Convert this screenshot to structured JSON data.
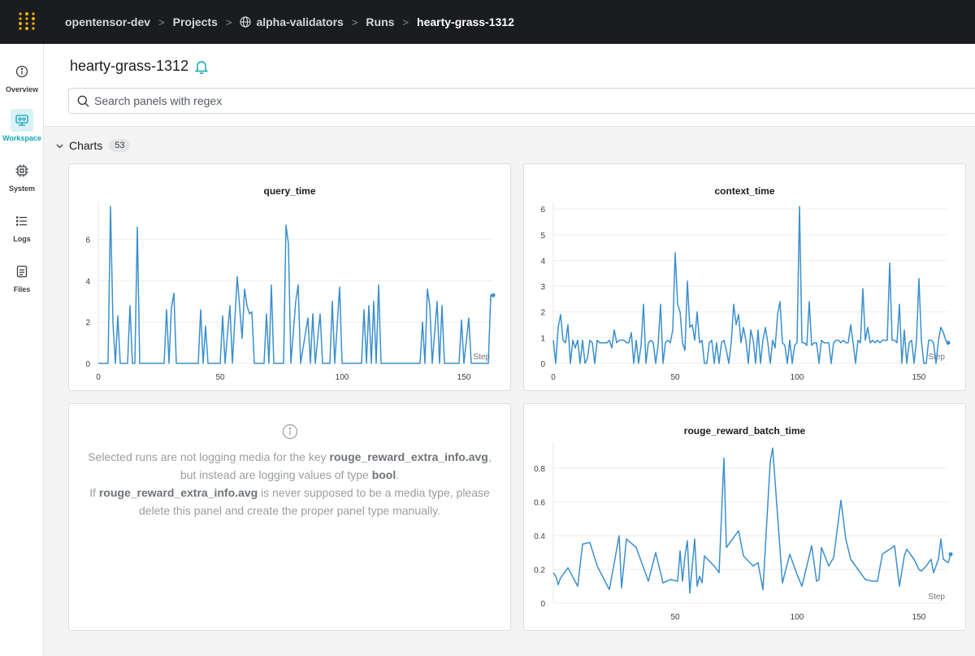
{
  "breadcrumb": {
    "items": [
      "opentensor-dev",
      "Projects",
      "alpha-validators",
      "Runs",
      "hearty-grass-1312"
    ],
    "separator": ">"
  },
  "sidebar": {
    "items": [
      {
        "label": "Overview",
        "icon": "info-icon"
      },
      {
        "label": "Workspace",
        "icon": "workspace-icon"
      },
      {
        "label": "System",
        "icon": "chip-icon"
      },
      {
        "label": "Logs",
        "icon": "logs-icon"
      },
      {
        "label": "Files",
        "icon": "file-icon"
      }
    ],
    "active": "Workspace"
  },
  "header": {
    "run_title": "hearty-grass-1312",
    "search_placeholder": "Search panels with regex"
  },
  "section": {
    "label": "Charts",
    "count": "53"
  },
  "colors": {
    "accent": "#10a5b8",
    "line": "#3b8fce",
    "topbar": "#1a1c1f"
  },
  "media_panel": {
    "l1_a": "Selected runs are not logging media for the key ",
    "l1_key": "rouge_reward_extra_info.avg",
    "l1_b": ",",
    "l2_a": "but instead are logging values of type ",
    "l2_type": "bool",
    "l2_b": ".",
    "l3_a": "If ",
    "l3_key": "rouge_reward_extra_info.avg",
    "l3_b": " is never supposed to be a media type, please",
    "l4": "delete this panel and create the proper panel type manually."
  },
  "chart_data": [
    {
      "type": "line",
      "title": "query_time",
      "x_axis_label": "Step",
      "xlim": [
        0,
        162
      ],
      "ylim": [
        0,
        7.6
      ],
      "x_ticks": [
        0,
        50,
        100,
        150
      ],
      "y_ticks": [
        0,
        2,
        4,
        6
      ],
      "points": [
        [
          0,
          0
        ],
        [
          4,
          0
        ],
        [
          5,
          7.6
        ],
        [
          6,
          2
        ],
        [
          7,
          0
        ],
        [
          8,
          2.3
        ],
        [
          9,
          0
        ],
        [
          12,
          0
        ],
        [
          13,
          2.8
        ],
        [
          14,
          0
        ],
        [
          15,
          0
        ],
        [
          16,
          6.6
        ],
        [
          17,
          0
        ],
        [
          27,
          0
        ],
        [
          28,
          2.6
        ],
        [
          29,
          0
        ],
        [
          30,
          2.7
        ],
        [
          31,
          3.4
        ],
        [
          32,
          0
        ],
        [
          41,
          0
        ],
        [
          42,
          2.6
        ],
        [
          43,
          0
        ],
        [
          44,
          1.8
        ],
        [
          45,
          0
        ],
        [
          50,
          0
        ],
        [
          51,
          2.3
        ],
        [
          52,
          0
        ],
        [
          54,
          2.8
        ],
        [
          55,
          0
        ],
        [
          57,
          4.2
        ],
        [
          58,
          2.7
        ],
        [
          59,
          1.2
        ],
        [
          60,
          3.6
        ],
        [
          61,
          2.8
        ],
        [
          62,
          2.4
        ],
        [
          63,
          2.5
        ],
        [
          64,
          0
        ],
        [
          68,
          0
        ],
        [
          69,
          2.4
        ],
        [
          70,
          0
        ],
        [
          71,
          3.8
        ],
        [
          72,
          0
        ],
        [
          76,
          0
        ],
        [
          77,
          6.7
        ],
        [
          78,
          5.8
        ],
        [
          79,
          0
        ],
        [
          81,
          3.0
        ],
        [
          82,
          3.8
        ],
        [
          83,
          0
        ],
        [
          86,
          2.2
        ],
        [
          87,
          0
        ],
        [
          88,
          2.4
        ],
        [
          89,
          0
        ],
        [
          91,
          2.4
        ],
        [
          92,
          0
        ],
        [
          95,
          0
        ],
        [
          96,
          3.0
        ],
        [
          97,
          0
        ],
        [
          99,
          3.7
        ],
        [
          100,
          0
        ],
        [
          108,
          0
        ],
        [
          109,
          2.6
        ],
        [
          110,
          0
        ],
        [
          111,
          2.8
        ],
        [
          112,
          0
        ],
        [
          113,
          3.0
        ],
        [
          114,
          0
        ],
        [
          115,
          3.8
        ],
        [
          116,
          0
        ],
        [
          132,
          0
        ],
        [
          133,
          2.0
        ],
        [
          134,
          0
        ],
        [
          135,
          3.6
        ],
        [
          136,
          2.8
        ],
        [
          137,
          0
        ],
        [
          139,
          3.0
        ],
        [
          140,
          0
        ],
        [
          141,
          2.8
        ],
        [
          142,
          0
        ],
        [
          148,
          0
        ],
        [
          149,
          2.1
        ],
        [
          150,
          0
        ],
        [
          152,
          2.2
        ],
        [
          153,
          0
        ],
        [
          160,
          0
        ],
        [
          161,
          3.3
        ],
        [
          162,
          3.3
        ]
      ]
    },
    {
      "type": "line",
      "title": "context_time",
      "x_axis_label": "Step",
      "xlim": [
        0,
        162
      ],
      "ylim": [
        0,
        6.1
      ],
      "x_ticks": [
        0,
        50,
        100,
        150
      ],
      "y_ticks": [
        0,
        1,
        2,
        3,
        4,
        5,
        6
      ],
      "points": [
        [
          0,
          0.9
        ],
        [
          1,
          0
        ],
        [
          2,
          1.4
        ],
        [
          3,
          1.9
        ],
        [
          4,
          0.9
        ],
        [
          5,
          0.8
        ],
        [
          6,
          1.5
        ],
        [
          7,
          0
        ],
        [
          8,
          0.9
        ],
        [
          9,
          0.6
        ],
        [
          10,
          0.9
        ],
        [
          11,
          0
        ],
        [
          12,
          0.9
        ],
        [
          13,
          0
        ],
        [
          14,
          0.2
        ],
        [
          15,
          0.9
        ],
        [
          16,
          0.8
        ],
        [
          17,
          0
        ],
        [
          18,
          0.9
        ],
        [
          19,
          0.8
        ],
        [
          20,
          0.8
        ],
        [
          21,
          0.8
        ],
        [
          22,
          0.8
        ],
        [
          23,
          0.9
        ],
        [
          24,
          0.6
        ],
        [
          25,
          1.3
        ],
        [
          26,
          0.8
        ],
        [
          27,
          0.9
        ],
        [
          28,
          0.9
        ],
        [
          29,
          0.9
        ],
        [
          30,
          0.8
        ],
        [
          31,
          0.8
        ],
        [
          32,
          1.2
        ],
        [
          33,
          0
        ],
        [
          34,
          0.9
        ],
        [
          35,
          0
        ],
        [
          36,
          0.7
        ],
        [
          37,
          2.3
        ],
        [
          38,
          0
        ],
        [
          39,
          0.8
        ],
        [
          40,
          0.9
        ],
        [
          41,
          0.8
        ],
        [
          42,
          0
        ],
        [
          43,
          0.7
        ],
        [
          44,
          2.3
        ],
        [
          45,
          0
        ],
        [
          46,
          0.8
        ],
        [
          47,
          0.9
        ],
        [
          48,
          0.8
        ],
        [
          49,
          1.3
        ],
        [
          50,
          4.3
        ],
        [
          51,
          2.3
        ],
        [
          52,
          2.0
        ],
        [
          53,
          0.8
        ],
        [
          54,
          0.5
        ],
        [
          55,
          3.2
        ],
        [
          56,
          1.4
        ],
        [
          57,
          1.5
        ],
        [
          58,
          0.9
        ],
        [
          59,
          2.0
        ],
        [
          60,
          0.8
        ],
        [
          61,
          0.9
        ],
        [
          62,
          0
        ],
        [
          63,
          0
        ],
        [
          64,
          0.8
        ],
        [
          65,
          0.9
        ],
        [
          66,
          0
        ],
        [
          67,
          0.8
        ],
        [
          68,
          0
        ],
        [
          69,
          0.8
        ],
        [
          70,
          0.9
        ],
        [
          71,
          0.5
        ],
        [
          72,
          0
        ],
        [
          73,
          0.8
        ],
        [
          74,
          2.3
        ],
        [
          75,
          1.5
        ],
        [
          76,
          1.9
        ],
        [
          77,
          0.8
        ],
        [
          78,
          1.4
        ],
        [
          79,
          0.9
        ],
        [
          80,
          0
        ],
        [
          81,
          1.3
        ],
        [
          82,
          0.9
        ],
        [
          83,
          0
        ],
        [
          84,
          1.3
        ],
        [
          85,
          0
        ],
        [
          86,
          0.9
        ],
        [
          87,
          1.4
        ],
        [
          88,
          0.8
        ],
        [
          89,
          0
        ],
        [
          90,
          0.9
        ],
        [
          91,
          0.6
        ],
        [
          92,
          1.9
        ],
        [
          93,
          2.4
        ],
        [
          94,
          0.8
        ],
        [
          95,
          0.7
        ],
        [
          96,
          0
        ],
        [
          97,
          0.9
        ],
        [
          98,
          0
        ],
        [
          99,
          0.7
        ],
        [
          100,
          0.8
        ],
        [
          101,
          6.1
        ],
        [
          102,
          0.8
        ],
        [
          103,
          0.8
        ],
        [
          104,
          0.7
        ],
        [
          105,
          2.4
        ],
        [
          106,
          0.7
        ],
        [
          107,
          0.8
        ],
        [
          108,
          0.8
        ],
        [
          109,
          0
        ],
        [
          110,
          0.9
        ],
        [
          111,
          0.8
        ],
        [
          112,
          0.8
        ],
        [
          113,
          0.8
        ],
        [
          114,
          0
        ],
        [
          115,
          0.8
        ],
        [
          116,
          0.9
        ],
        [
          117,
          0.9
        ],
        [
          118,
          0.8
        ],
        [
          119,
          0.9
        ],
        [
          120,
          0.8
        ],
        [
          121,
          0.8
        ],
        [
          122,
          1.5
        ],
        [
          123,
          0.8
        ],
        [
          124,
          0
        ],
        [
          125,
          0.9
        ],
        [
          126,
          0.8
        ],
        [
          127,
          2.9
        ],
        [
          128,
          0.9
        ],
        [
          129,
          1.4
        ],
        [
          130,
          0.8
        ],
        [
          131,
          0.9
        ],
        [
          132,
          0.8
        ],
        [
          133,
          0.9
        ],
        [
          134,
          0.8
        ],
        [
          135,
          0.9
        ],
        [
          136,
          0.9
        ],
        [
          137,
          0.9
        ],
        [
          138,
          3.9
        ],
        [
          139,
          0.9
        ],
        [
          140,
          0.9
        ],
        [
          141,
          0.8
        ],
        [
          142,
          2.3
        ],
        [
          143,
          0
        ],
        [
          144,
          1.3
        ],
        [
          145,
          0
        ],
        [
          146,
          0.8
        ],
        [
          147,
          0.9
        ],
        [
          148,
          0
        ],
        [
          149,
          0.9
        ],
        [
          150,
          3.3
        ],
        [
          151,
          0.9
        ],
        [
          152,
          0
        ],
        [
          153,
          0
        ],
        [
          154,
          0.9
        ],
        [
          155,
          0.9
        ],
        [
          156,
          0.8
        ],
        [
          157,
          0
        ],
        [
          158,
          0.9
        ],
        [
          159,
          1.4
        ],
        [
          160,
          1.2
        ],
        [
          161,
          0.9
        ],
        [
          162,
          0.8
        ]
      ]
    },
    {
      "type": "line",
      "title": "rouge_reward_batch_time",
      "x_axis_label": "Step",
      "xlim": [
        0,
        162
      ],
      "ylim": [
        0,
        0.93
      ],
      "x_ticks": [
        50,
        100,
        150
      ],
      "y_ticks": [
        0,
        0.2,
        0.4,
        0.6,
        0.8
      ],
      "points": [
        [
          0,
          0.18
        ],
        [
          1,
          0.16
        ],
        [
          2,
          0.11
        ],
        [
          3,
          0.15
        ],
        [
          6,
          0.21
        ],
        [
          10,
          0.1
        ],
        [
          12,
          0.35
        ],
        [
          15,
          0.36
        ],
        [
          18,
          0.22
        ],
        [
          23,
          0.08
        ],
        [
          27,
          0.4
        ],
        [
          28,
          0.09
        ],
        [
          30,
          0.38
        ],
        [
          34,
          0.33
        ],
        [
          39,
          0.13
        ],
        [
          42,
          0.3
        ],
        [
          45,
          0.12
        ],
        [
          48,
          0.14
        ],
        [
          51,
          0.13
        ],
        [
          52,
          0.31
        ],
        [
          53,
          0.13
        ],
        [
          54,
          0.28
        ],
        [
          55,
          0.37
        ],
        [
          56,
          0.06
        ],
        [
          58,
          0.38
        ],
        [
          59,
          0.1
        ],
        [
          60,
          0.16
        ],
        [
          61,
          0.12
        ],
        [
          62,
          0.28
        ],
        [
          66,
          0.22
        ],
        [
          68,
          0.18
        ],
        [
          70,
          0.86
        ],
        [
          71,
          0.33
        ],
        [
          76,
          0.43
        ],
        [
          78,
          0.28
        ],
        [
          80,
          0.25
        ],
        [
          82,
          0.22
        ],
        [
          84,
          0.24
        ],
        [
          86,
          0.08
        ],
        [
          89,
          0.84
        ],
        [
          90,
          0.92
        ],
        [
          92,
          0.52
        ],
        [
          94,
          0.12
        ],
        [
          97,
          0.29
        ],
        [
          100,
          0.17
        ],
        [
          102,
          0.1
        ],
        [
          104,
          0.22
        ],
        [
          106,
          0.34
        ],
        [
          108,
          0.13
        ],
        [
          109,
          0.14
        ],
        [
          110,
          0.33
        ],
        [
          113,
          0.22
        ],
        [
          115,
          0.27
        ],
        [
          118,
          0.61
        ],
        [
          120,
          0.38
        ],
        [
          122,
          0.26
        ],
        [
          125,
          0.2
        ],
        [
          128,
          0.14
        ],
        [
          131,
          0.13
        ],
        [
          133,
          0.13
        ],
        [
          135,
          0.29
        ],
        [
          138,
          0.32
        ],
        [
          140,
          0.34
        ],
        [
          142,
          0.1
        ],
        [
          144,
          0.28
        ],
        [
          145,
          0.32
        ],
        [
          148,
          0.26
        ],
        [
          150,
          0.2
        ],
        [
          151,
          0.19
        ],
        [
          153,
          0.22
        ],
        [
          155,
          0.26
        ],
        [
          156,
          0.18
        ],
        [
          158,
          0.26
        ],
        [
          159,
          0.38
        ],
        [
          160,
          0.26
        ],
        [
          162,
          0.24
        ],
        [
          163,
          0.29
        ]
      ]
    }
  ]
}
